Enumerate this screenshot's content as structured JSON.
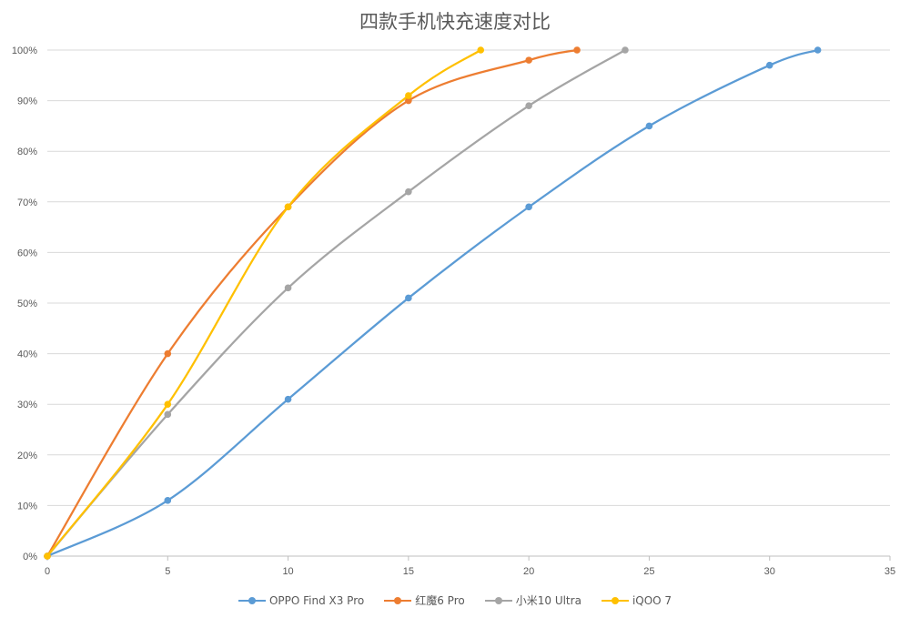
{
  "chart_data": {
    "type": "line",
    "title": "四款手机快充速度对比",
    "xlabel": "",
    "ylabel": "",
    "xlim": [
      0,
      35
    ],
    "ylim": [
      0,
      100
    ],
    "x_ticks": [
      0,
      5,
      10,
      15,
      20,
      25,
      30,
      35
    ],
    "y_ticks": [
      "0%",
      "10%",
      "20%",
      "30%",
      "40%",
      "50%",
      "60%",
      "70%",
      "80%",
      "90%",
      "100%"
    ],
    "grid": "horizontal",
    "legend": "bottom",
    "smooth": true,
    "series": [
      {
        "name": "OPPO Find X3 Pro",
        "color": "#5B9BD5",
        "points": [
          [
            0,
            0
          ],
          [
            5,
            11
          ],
          [
            10,
            31
          ],
          [
            15,
            51
          ],
          [
            20,
            69
          ],
          [
            25,
            85
          ],
          [
            30,
            97
          ],
          [
            32,
            100
          ]
        ]
      },
      {
        "name": "红魔6 Pro",
        "color": "#ED7D31",
        "points": [
          [
            0,
            0
          ],
          [
            5,
            40
          ],
          [
            10,
            69
          ],
          [
            15,
            90
          ],
          [
            20,
            98
          ],
          [
            22,
            100
          ]
        ]
      },
      {
        "name": "小米10 Ultra",
        "color": "#A5A5A5",
        "points": [
          [
            0,
            0
          ],
          [
            5,
            28
          ],
          [
            10,
            53
          ],
          [
            15,
            72
          ],
          [
            20,
            89
          ],
          [
            24,
            100
          ]
        ]
      },
      {
        "name": "iQOO 7",
        "color": "#FFC000",
        "points": [
          [
            0,
            0
          ],
          [
            5,
            30
          ],
          [
            10,
            69
          ],
          [
            15,
            91
          ],
          [
            18,
            100
          ]
        ]
      }
    ]
  }
}
